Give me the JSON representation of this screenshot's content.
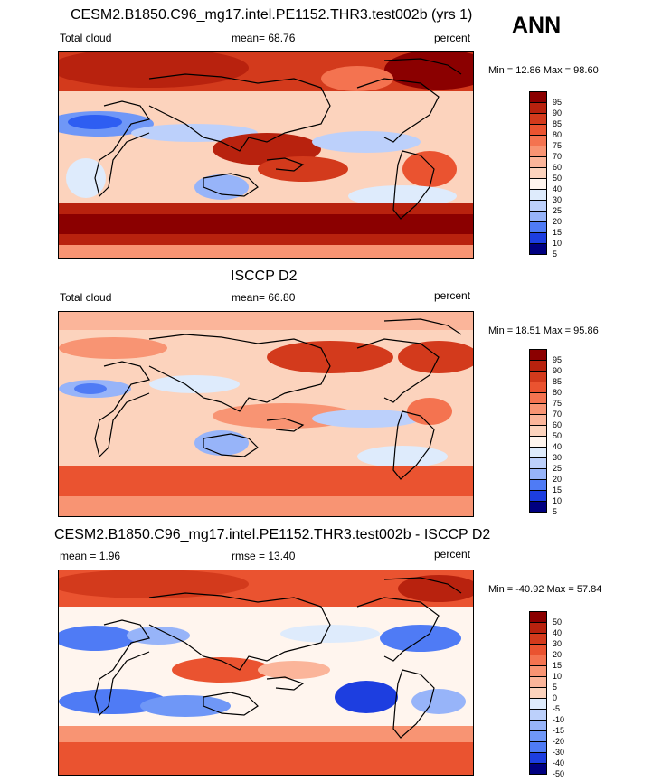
{
  "header": {
    "season_label": "ANN"
  },
  "colors": {
    "abs_scale": [
      "#000080",
      "#0a1fb8",
      "#1d3ee0",
      "#2e5ef2",
      "#4f7bf5",
      "#6f97f7",
      "#97b4f9",
      "#bcd0fb",
      "#deebfc",
      "#fff5ee",
      "#fcd3bd",
      "#fbb59a",
      "#f89473",
      "#f47350",
      "#ea5330",
      "#d33a1c",
      "#b8220e",
      "#8b0000"
    ],
    "diff_scale": [
      "#000080",
      "#0a1fb8",
      "#1d3ee0",
      "#2e5ef2",
      "#4f7bf5",
      "#6f97f7",
      "#97b4f9",
      "#bcd0fb",
      "#deebfc",
      "#fff5ee",
      "#fcd3bd",
      "#fbb59a",
      "#f89473",
      "#f47350",
      "#ea5330",
      "#d33a1c",
      "#b8220e",
      "#8b0000"
    ]
  },
  "chart_data": [
    {
      "type": "heatmap",
      "id": "model",
      "title": "CESM2.B1850.C96_mg17.intel.PE1152.THR3.test002b (yrs 1)",
      "variable": "Total cloud",
      "stat_label": "mean=  68.76",
      "stat_value": 68.76,
      "units": "percent",
      "min_max": "Min =  12.86 Max =  98.60",
      "min": 12.86,
      "max": 98.6,
      "levels": [
        "95",
        "90",
        "85",
        "80",
        "75",
        "70",
        "60",
        "50",
        "40",
        "30",
        "25",
        "20",
        "15",
        "10",
        "5"
      ]
    },
    {
      "type": "heatmap",
      "id": "obs",
      "title": "ISCCP D2",
      "variable": "Total cloud",
      "stat_label": "mean=  66.80",
      "stat_value": 66.8,
      "units": "percent",
      "min_max": "Min =  18.51 Max =  95.86",
      "min": 18.51,
      "max": 95.86,
      "levels": [
        "95",
        "90",
        "85",
        "80",
        "75",
        "70",
        "60",
        "50",
        "40",
        "30",
        "25",
        "20",
        "15",
        "10",
        "5"
      ]
    },
    {
      "type": "heatmap",
      "id": "diff",
      "title": "CESM2.B1850.C96_mg17.intel.PE1152.THR3.test002b - ISCCP D2",
      "mean_label": "mean =   1.96",
      "mean_value": 1.96,
      "rmse_label": "rmse =  13.40",
      "rmse_value": 13.4,
      "units": "percent",
      "min_max": "Min = -40.92 Max =  57.84",
      "min": -40.92,
      "max": 57.84,
      "levels": [
        "50",
        "40",
        "30",
        "20",
        "15",
        "10",
        "5",
        "0",
        "-5",
        "-10",
        "-15",
        "-20",
        "-30",
        "-40",
        "-50"
      ]
    }
  ]
}
